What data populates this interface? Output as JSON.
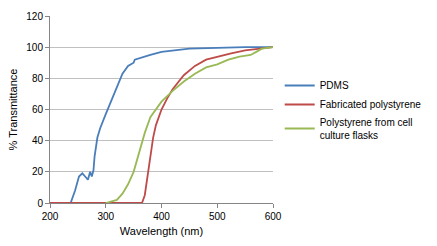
{
  "chart_data": {
    "type": "line",
    "xlabel": "Wavelength (nm)",
    "ylabel": "% Transmittance",
    "xlim": [
      200,
      600
    ],
    "xticks": [
      200,
      300,
      400,
      500,
      600
    ],
    "ylim": [
      0,
      120
    ],
    "yticks": [
      0,
      20,
      40,
      60,
      80,
      100,
      120
    ],
    "grid": true,
    "legend": "right",
    "series": [
      {
        "name": "PDMS",
        "color": "#4a7ebb",
        "x": [
          237,
          245,
          252,
          258,
          263,
          268,
          272,
          275,
          278,
          280,
          285,
          290,
          300,
          310,
          320,
          330,
          340,
          350,
          352,
          360,
          370,
          380,
          400,
          425,
          450,
          500,
          550,
          600
        ],
        "values": [
          0,
          8,
          17,
          19,
          17,
          15,
          20,
          17,
          21,
          30,
          42,
          48,
          57,
          66,
          75,
          83,
          88,
          90,
          92,
          93,
          94,
          95,
          97,
          98,
          99,
          99.5,
          100,
          100
        ]
      },
      {
        "name": "Fabricated polystyrene",
        "color": "#be4b48",
        "x": [
          200,
          365,
          370,
          375,
          380,
          385,
          390,
          400,
          410,
          420,
          440,
          460,
          480,
          500,
          525,
          550,
          575,
          600
        ],
        "values": [
          0,
          0,
          5,
          18,
          32,
          42,
          50,
          60,
          67,
          73,
          82,
          88,
          92,
          94,
          96,
          98,
          99,
          100
        ]
      },
      {
        "name": "Polystyrene from cell culture flasks",
        "color": "#98b954",
        "x": [
          300,
          310,
          320,
          330,
          340,
          350,
          360,
          370,
          380,
          390,
          400,
          420,
          440,
          460,
          480,
          500,
          520,
          540,
          560,
          570,
          580,
          600
        ],
        "values": [
          0,
          1,
          2,
          6,
          12,
          20,
          33,
          45,
          55,
          60,
          65,
          72,
          78,
          83,
          87,
          89,
          92,
          94,
          95,
          97,
          99,
          100
        ]
      }
    ]
  }
}
